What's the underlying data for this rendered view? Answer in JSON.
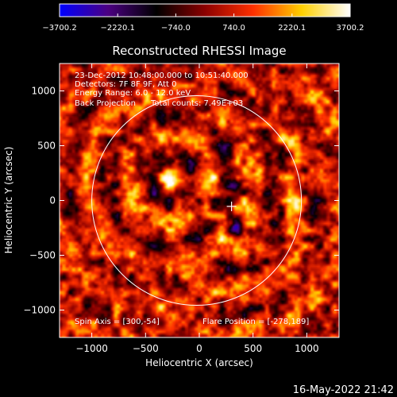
{
  "chart_data": {
    "type": "heatmap",
    "title": "Reconstructed RHESSI Image",
    "xlabel": "Heliocentric X (arcsec)",
    "ylabel": "Heliocentric Y (arcsec)",
    "xlim": [
      -1300,
      1300
    ],
    "ylim": [
      -1250,
      1250
    ],
    "x_ticks": [
      -1000,
      -500,
      0,
      500,
      1000
    ],
    "y_ticks": [
      -1000,
      -500,
      0,
      500,
      1000
    ],
    "x_tick_labels": [
      "−1000",
      "−500",
      "0",
      "500",
      "1000"
    ],
    "y_tick_labels": [
      "−1000",
      "−500",
      "0",
      "500",
      "1000"
    ],
    "colorbar": {
      "range": [
        -3700.2,
        3700.2
      ],
      "tick_values": [
        -3700.2,
        -2220.1,
        -740.0,
        740.0,
        2220.1,
        3700.2
      ],
      "tick_labels": [
        "−3700.2",
        "−2220.1",
        "−740.0",
        "740.0",
        "2220.1",
        "3700.2"
      ],
      "colors": [
        "#0000ff",
        "#4b0082",
        "#000000",
        "#8b0000",
        "#ff3000",
        "#ffd000",
        "#ffffff"
      ]
    },
    "annotations": [
      "23-Dec-2012 10:48:00.000 to 10:51:40.000",
      "Detectors: 7F 8F 9F, Att 0",
      "Energy Range: 6.0 - 12.0 keV",
      "Back Projection",
      "Total counts: 7.49E+03"
    ],
    "footer_left": "Spin Axis = [300,-54]",
    "footer_right": "Flare Position = [-278,189]",
    "solar_disk": {
      "center": [
        -25,
        0
      ],
      "radius": 975,
      "color": "#ffffff"
    },
    "spin_axis_marker": [
      300,
      -54
    ],
    "hot_spots": [
      {
        "x": -280,
        "y": 200,
        "intensity": 3700
      },
      {
        "x": 350,
        "y": -260,
        "intensity": -3000
      }
    ],
    "grid": false,
    "legend": "none"
  },
  "timestamp": "16-May-2022 21:42"
}
